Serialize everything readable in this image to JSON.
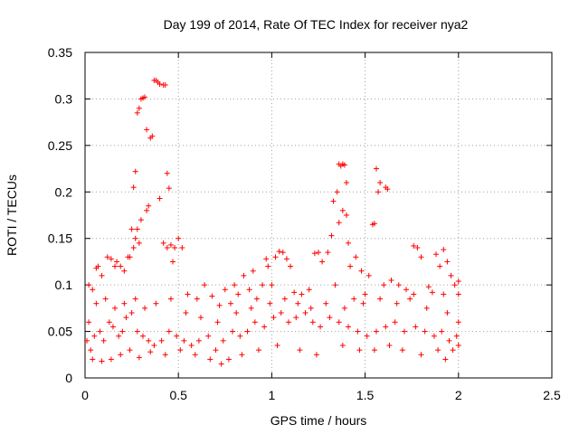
{
  "chart_data": {
    "type": "scatter",
    "title": "Day 199 of 2014, Rate Of TEC Index for receiver nya2",
    "xlabel": "GPS time / hours",
    "ylabel": "ROTI / TECUs",
    "xlim": [
      0,
      2.5
    ],
    "ylim": [
      0,
      0.35
    ],
    "xticks": [
      "0",
      "0.5",
      "1",
      "1.5",
      "2",
      "2.5"
    ],
    "yticks": [
      "0",
      "0.05",
      "0.1",
      "0.15",
      "0.2",
      "0.25",
      "0.3",
      "0.35"
    ],
    "grid": true,
    "marker": "plus",
    "color": "#ff0000",
    "series": [
      {
        "name": "ROTI",
        "points": [
          [
            0.26,
            0.205
          ],
          [
            0.27,
            0.222
          ],
          [
            0.28,
            0.285
          ],
          [
            0.29,
            0.29
          ],
          [
            0.3,
            0.3
          ],
          [
            0.31,
            0.301
          ],
          [
            0.32,
            0.302
          ],
          [
            0.33,
            0.267
          ],
          [
            0.35,
            0.258
          ],
          [
            0.36,
            0.26
          ],
          [
            0.37,
            0.32
          ],
          [
            0.38,
            0.32
          ],
          [
            0.39,
            0.318
          ],
          [
            0.4,
            0.316
          ],
          [
            0.42,
            0.315
          ],
          [
            0.43,
            0.315
          ],
          [
            0.44,
            0.22
          ],
          [
            0.45,
            0.204
          ],
          [
            0.4,
            0.193
          ],
          [
            0.34,
            0.185
          ],
          [
            0.33,
            0.18
          ],
          [
            0.3,
            0.17
          ],
          [
            0.28,
            0.16
          ],
          [
            0.27,
            0.15
          ],
          [
            0.25,
            0.16
          ],
          [
            0.26,
            0.14
          ],
          [
            0.29,
            0.145
          ],
          [
            0.24,
            0.13
          ],
          [
            0.42,
            0.145
          ],
          [
            0.44,
            0.14
          ],
          [
            0.46,
            0.143
          ],
          [
            0.48,
            0.14
          ],
          [
            0.5,
            0.15
          ],
          [
            0.52,
            0.14
          ],
          [
            0.47,
            0.125
          ],
          [
            1.3,
            0.135
          ],
          [
            1.32,
            0.153
          ],
          [
            1.33,
            0.19
          ],
          [
            1.35,
            0.2
          ],
          [
            1.36,
            0.23
          ],
          [
            1.37,
            0.228
          ],
          [
            1.38,
            0.23
          ],
          [
            1.39,
            0.229
          ],
          [
            1.4,
            0.21
          ],
          [
            1.38,
            0.18
          ],
          [
            1.4,
            0.175
          ],
          [
            1.41,
            0.145
          ],
          [
            1.36,
            0.167
          ],
          [
            1.56,
            0.225
          ],
          [
            1.58,
            0.21
          ],
          [
            1.57,
            0.2
          ],
          [
            1.61,
            0.205
          ],
          [
            1.62,
            0.203
          ],
          [
            1.54,
            0.165
          ],
          [
            1.55,
            0.166
          ],
          [
            1.52,
            0.11
          ],
          [
            1.48,
            0.115
          ],
          [
            1.45,
            0.13
          ],
          [
            1.42,
            0.12
          ],
          [
            1.76,
            0.142
          ],
          [
            1.78,
            0.14
          ],
          [
            1.8,
            0.13
          ],
          [
            1.88,
            0.133
          ],
          [
            1.92,
            0.138
          ],
          [
            1.94,
            0.125
          ],
          [
            1.96,
            0.11
          ],
          [
            1.9,
            0.12
          ],
          [
            1.98,
            0.1
          ],
          [
            2.0,
            0.104
          ],
          [
            1.02,
            0.13
          ],
          [
            1.04,
            0.136
          ],
          [
            1.06,
            0.135
          ],
          [
            1.08,
            0.128
          ],
          [
            0.98,
            0.12
          ],
          [
            0.97,
            0.128
          ],
          [
            1.23,
            0.134
          ],
          [
            1.25,
            0.135
          ],
          [
            1.27,
            0.125
          ],
          [
            1.1,
            0.12
          ],
          [
            0.9,
            0.115
          ],
          [
            0.85,
            0.11
          ],
          [
            0.8,
            0.1
          ],
          [
            0.75,
            0.095
          ],
          [
            0.07,
            0.12
          ],
          [
            0.06,
            0.118
          ],
          [
            0.09,
            0.11
          ],
          [
            0.12,
            0.13
          ],
          [
            0.14,
            0.128
          ],
          [
            0.17,
            0.125
          ],
          [
            0.19,
            0.12
          ],
          [
            0.21,
            0.115
          ],
          [
            0.23,
            0.13
          ],
          [
            0.16,
            0.12
          ],
          [
            0.02,
            0.1
          ],
          [
            0.04,
            0.095
          ],
          [
            0.55,
            0.09
          ],
          [
            0.6,
            0.085
          ],
          [
            0.64,
            0.1
          ],
          [
            0.68,
            0.088
          ],
          [
            0.72,
            0.078
          ],
          [
            0.78,
            0.08
          ],
          [
            0.82,
            0.09
          ],
          [
            0.88,
            0.095
          ],
          [
            0.92,
            0.085
          ],
          [
            0.95,
            0.1
          ],
          [
            1.0,
            0.1
          ],
          [
            1.12,
            0.092
          ],
          [
            1.16,
            0.09
          ],
          [
            1.2,
            0.095
          ],
          [
            1.34,
            0.1
          ],
          [
            1.44,
            0.085
          ],
          [
            1.5,
            0.09
          ],
          [
            1.6,
            0.1
          ],
          [
            1.64,
            0.105
          ],
          [
            1.68,
            0.1
          ],
          [
            1.72,
            0.095
          ],
          [
            1.76,
            0.09
          ],
          [
            1.84,
            0.098
          ],
          [
            1.86,
            0.092
          ],
          [
            1.92,
            0.09
          ],
          [
            2.0,
            0.09
          ],
          [
            0.01,
            0.04
          ],
          [
            0.02,
            0.06
          ],
          [
            0.03,
            0.03
          ],
          [
            0.05,
            0.045
          ],
          [
            0.08,
            0.05
          ],
          [
            0.1,
            0.04
          ],
          [
            0.13,
            0.06
          ],
          [
            0.15,
            0.055
          ],
          [
            0.18,
            0.045
          ],
          [
            0.2,
            0.05
          ],
          [
            0.22,
            0.065
          ],
          [
            0.25,
            0.07
          ],
          [
            0.28,
            0.05
          ],
          [
            0.31,
            0.045
          ],
          [
            0.34,
            0.04
          ],
          [
            0.37,
            0.035
          ],
          [
            0.41,
            0.04
          ],
          [
            0.45,
            0.05
          ],
          [
            0.49,
            0.045
          ],
          [
            0.53,
            0.04
          ],
          [
            0.57,
            0.035
          ],
          [
            0.61,
            0.04
          ],
          [
            0.66,
            0.045
          ],
          [
            0.7,
            0.03
          ],
          [
            0.74,
            0.04
          ],
          [
            0.79,
            0.05
          ],
          [
            0.83,
            0.045
          ],
          [
            0.87,
            0.05
          ],
          [
            0.91,
            0.06
          ],
          [
            0.96,
            0.055
          ],
          [
            1.01,
            0.065
          ],
          [
            1.05,
            0.07
          ],
          [
            1.09,
            0.06
          ],
          [
            1.13,
            0.065
          ],
          [
            1.18,
            0.07
          ],
          [
            1.22,
            0.06
          ],
          [
            1.26,
            0.055
          ],
          [
            1.31,
            0.065
          ],
          [
            1.36,
            0.06
          ],
          [
            1.41,
            0.055
          ],
          [
            1.46,
            0.05
          ],
          [
            1.51,
            0.045
          ],
          [
            1.56,
            0.05
          ],
          [
            1.61,
            0.055
          ],
          [
            1.66,
            0.06
          ],
          [
            1.71,
            0.05
          ],
          [
            1.77,
            0.055
          ],
          [
            1.82,
            0.05
          ],
          [
            1.87,
            0.045
          ],
          [
            1.91,
            0.05
          ],
          [
            1.95,
            0.04
          ],
          [
            1.99,
            0.045
          ],
          [
            0.04,
            0.02
          ],
          [
            0.09,
            0.018
          ],
          [
            0.14,
            0.02
          ],
          [
            0.19,
            0.025
          ],
          [
            0.24,
            0.03
          ],
          [
            0.29,
            0.022
          ],
          [
            0.35,
            0.028
          ],
          [
            0.43,
            0.025
          ],
          [
            0.51,
            0.03
          ],
          [
            0.59,
            0.025
          ],
          [
            0.67,
            0.02
          ],
          [
            0.73,
            0.015
          ],
          [
            0.77,
            0.02
          ],
          [
            0.84,
            0.025
          ],
          [
            0.93,
            0.03
          ],
          [
            1.03,
            0.035
          ],
          [
            1.15,
            0.03
          ],
          [
            1.24,
            0.025
          ],
          [
            1.38,
            0.035
          ],
          [
            1.47,
            0.03
          ],
          [
            1.55,
            0.03
          ],
          [
            1.63,
            0.035
          ],
          [
            1.7,
            0.03
          ],
          [
            1.8,
            0.025
          ],
          [
            1.89,
            0.03
          ],
          [
            1.93,
            0.02
          ],
          [
            1.97,
            0.03
          ],
          [
            2.0,
            0.035
          ],
          [
            0.06,
            0.08
          ],
          [
            0.11,
            0.085
          ],
          [
            0.16,
            0.075
          ],
          [
            0.21,
            0.08
          ],
          [
            0.27,
            0.085
          ],
          [
            0.32,
            0.075
          ],
          [
            0.38,
            0.08
          ],
          [
            0.46,
            0.085
          ],
          [
            0.54,
            0.07
          ],
          [
            0.62,
            0.065
          ],
          [
            0.71,
            0.06
          ],
          [
            0.81,
            0.07
          ],
          [
            0.89,
            0.075
          ],
          [
            0.99,
            0.08
          ],
          [
            1.07,
            0.085
          ],
          [
            1.14,
            0.08
          ],
          [
            1.21,
            0.075
          ],
          [
            1.29,
            0.08
          ],
          [
            1.39,
            0.075
          ],
          [
            1.49,
            0.08
          ],
          [
            1.58,
            0.085
          ],
          [
            1.67,
            0.08
          ],
          [
            1.74,
            0.085
          ],
          [
            1.83,
            0.075
          ],
          [
            1.94,
            0.07
          ],
          [
            2.0,
            0.06
          ]
        ]
      }
    ]
  }
}
